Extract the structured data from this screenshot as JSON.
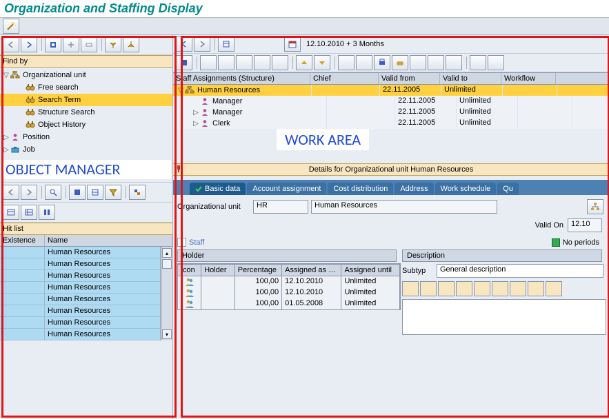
{
  "title": "Organization and Staffing Display",
  "colors": {
    "titleColor": "#008b8b",
    "panelBg": "#e8edf3",
    "sandBar": "#f8e6c0",
    "highlight": "#ffd040",
    "tabbar": "#4d80b3",
    "tabActive": "#1e5b8d",
    "tabInactive": "#3a70a3",
    "accentBlue": "#204bd6",
    "red": "#e01414",
    "listBlue": "#aedaf2"
  },
  "left": {
    "findByLabel": "Find by",
    "tree": [
      {
        "twist": "▽",
        "icon": "org",
        "label": "Organizational unit",
        "indent": 0
      },
      {
        "twist": "",
        "icon": "bino",
        "label": "Free search",
        "indent": 1
      },
      {
        "twist": "",
        "icon": "bino",
        "label": "Search Term",
        "indent": 1,
        "selected": true
      },
      {
        "twist": "",
        "icon": "bino",
        "label": "Structure Search",
        "indent": 1
      },
      {
        "twist": "",
        "icon": "bino",
        "label": "Object History",
        "indent": 1
      },
      {
        "twist": "▷",
        "icon": "person",
        "label": "Position",
        "indent": 0
      },
      {
        "twist": "▷",
        "icon": "job",
        "label": "Job",
        "indent": 0
      }
    ],
    "bigLabel": "OBJECT MANAGER",
    "hitListLabel": "Hit list",
    "hitHeaders": [
      "Existence",
      "Name"
    ],
    "hits": [
      "Human Resources",
      "Human Resources",
      "Human Resources",
      "Human Resources",
      "Human Resources",
      "Human Resources",
      "Human Resources",
      "Human Resources"
    ]
  },
  "right": {
    "dateText": "12.10.2010  + 3 Months",
    "staffHeaders": [
      "Staff Assignments (Structure)",
      "Chief",
      "Valid from",
      "Valid to",
      "Workflow"
    ],
    "staffRows": [
      {
        "label": "Human Resources",
        "icon": "org",
        "twist": "▽",
        "from": "22.11.2005",
        "to": "Unlimited",
        "hl": true
      },
      {
        "label": "Manager",
        "icon": "person",
        "twist": "",
        "from": "22.11.2005",
        "to": "Unlimited"
      },
      {
        "label": "Manager",
        "icon": "person",
        "twist": "▷",
        "from": "22.11.2005",
        "to": "Unlimited"
      },
      {
        "label": "Clerk",
        "icon": "person",
        "twist": "▷",
        "from": "22.11.2005",
        "to": "Unlimited"
      }
    ],
    "workAreaLabel": "WORK AREA",
    "detailsLabel": "Details for Organizational unit Human Resources",
    "tabs": [
      "Basic data",
      "Account assignment",
      "Cost distribution",
      "Address",
      "Work schedule",
      "Qu"
    ],
    "activeTab": 0,
    "orgUnitLabel": "Organizational unit",
    "orgUnitCode": "HR",
    "orgUnitName": "Human Resources",
    "validOnLabel": "Valid On",
    "validOnDate": "12.10",
    "noPeriodsLabel": "No periods",
    "staffCheckboxLabel": "Staff",
    "holder": {
      "label": "Holder",
      "headers": [
        "Icon",
        "Holder",
        "Percentage",
        "Assigned as …",
        "Assigned until"
      ],
      "rows": [
        {
          "pct": "100,00",
          "from": "12.10.2010",
          "to": "Unlimited"
        },
        {
          "pct": "100,00",
          "from": "12.10.2010",
          "to": "Unlimited"
        },
        {
          "pct": "100,00",
          "from": "01.05.2008",
          "to": "Unlimited"
        }
      ]
    },
    "desc": {
      "label": "Description",
      "subtypLabel": "Subtyp",
      "subtypValue": "General description"
    }
  }
}
